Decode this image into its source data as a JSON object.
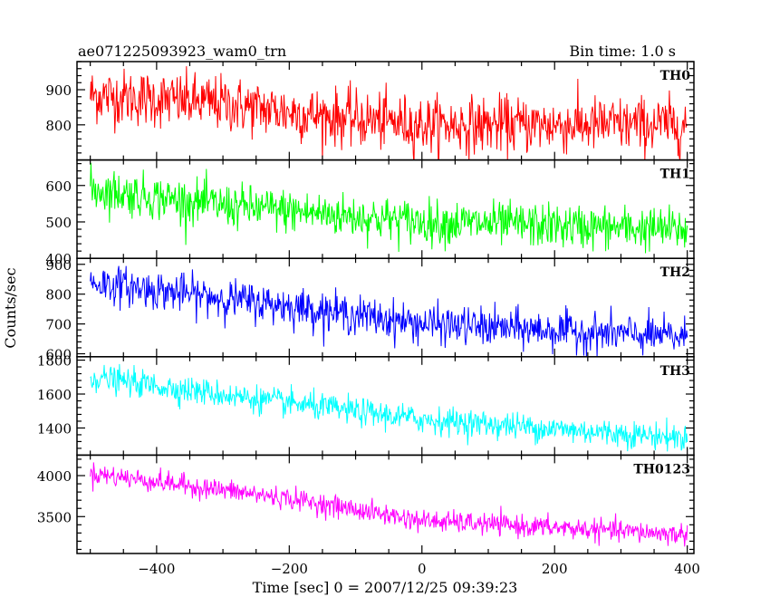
{
  "chart_data": {
    "type": "line",
    "title": "ae071225093923_wam0_trn",
    "subtitle": "Bin time: 1.0 s",
    "xlabel": "Time [sec] 0 = 2007/12/25 09:39:23",
    "ylabel": "Counts/sec",
    "xlim": [
      -520,
      410
    ],
    "xticks": [
      -400,
      -200,
      0,
      200,
      400
    ],
    "xtick_labels": [
      "−400",
      "−200",
      "0",
      "200",
      "400"
    ],
    "x_range": [
      -500,
      400
    ],
    "bin_time": 1.0,
    "grid": false,
    "legend": "none",
    "series": [
      {
        "name": "TH0",
        "color": "#ff0000",
        "ylim": [
          700,
          980
        ],
        "yticks": [
          800,
          900
        ],
        "ytick_labels": [
          "800",
          "900"
        ],
        "trend": [
          [
            -500,
            885
          ],
          [
            -300,
            860
          ],
          [
            -150,
            825
          ],
          [
            0,
            800
          ],
          [
            400,
            800
          ]
        ],
        "noise_sd": 40
      },
      {
        "name": "TH1",
        "color": "#00ff00",
        "ylim": [
          400,
          670
        ],
        "yticks": [
          400,
          500,
          600
        ],
        "ytick_labels": [
          "400",
          "500",
          "600"
        ],
        "trend": [
          [
            -500,
            590
          ],
          [
            -300,
            545
          ],
          [
            0,
            500
          ],
          [
            400,
            478
          ]
        ],
        "noise_sd": 30
      },
      {
        "name": "TH2",
        "color": "#0000ff",
        "ylim": [
          590,
          920
        ],
        "yticks": [
          600,
          700,
          800,
          900
        ],
        "ytick_labels": [
          "600",
          "700",
          "800",
          "900"
        ],
        "trend": [
          [
            -500,
            840
          ],
          [
            -200,
            760
          ],
          [
            0,
            700
          ],
          [
            400,
            655
          ]
        ],
        "noise_sd": 32
      },
      {
        "name": "TH3",
        "color": "#00ffff",
        "ylim": [
          1240,
          1820
        ],
        "yticks": [
          1400,
          1600,
          1800
        ],
        "ytick_labels": [
          "1400",
          "1600",
          "1800"
        ],
        "trend": [
          [
            -500,
            1700
          ],
          [
            -200,
            1545
          ],
          [
            0,
            1450
          ],
          [
            400,
            1340
          ]
        ],
        "noise_sd": 40
      },
      {
        "name": "TH0123",
        "color": "#ff00ff",
        "ylim": [
          3050,
          4250
        ],
        "yticks": [
          3500,
          4000
        ],
        "ytick_labels": [
          "3500",
          "4000"
        ],
        "trend": [
          [
            -500,
            4030
          ],
          [
            -200,
            3720
          ],
          [
            0,
            3450
          ],
          [
            400,
            3280
          ]
        ],
        "noise_sd": 65
      }
    ]
  }
}
